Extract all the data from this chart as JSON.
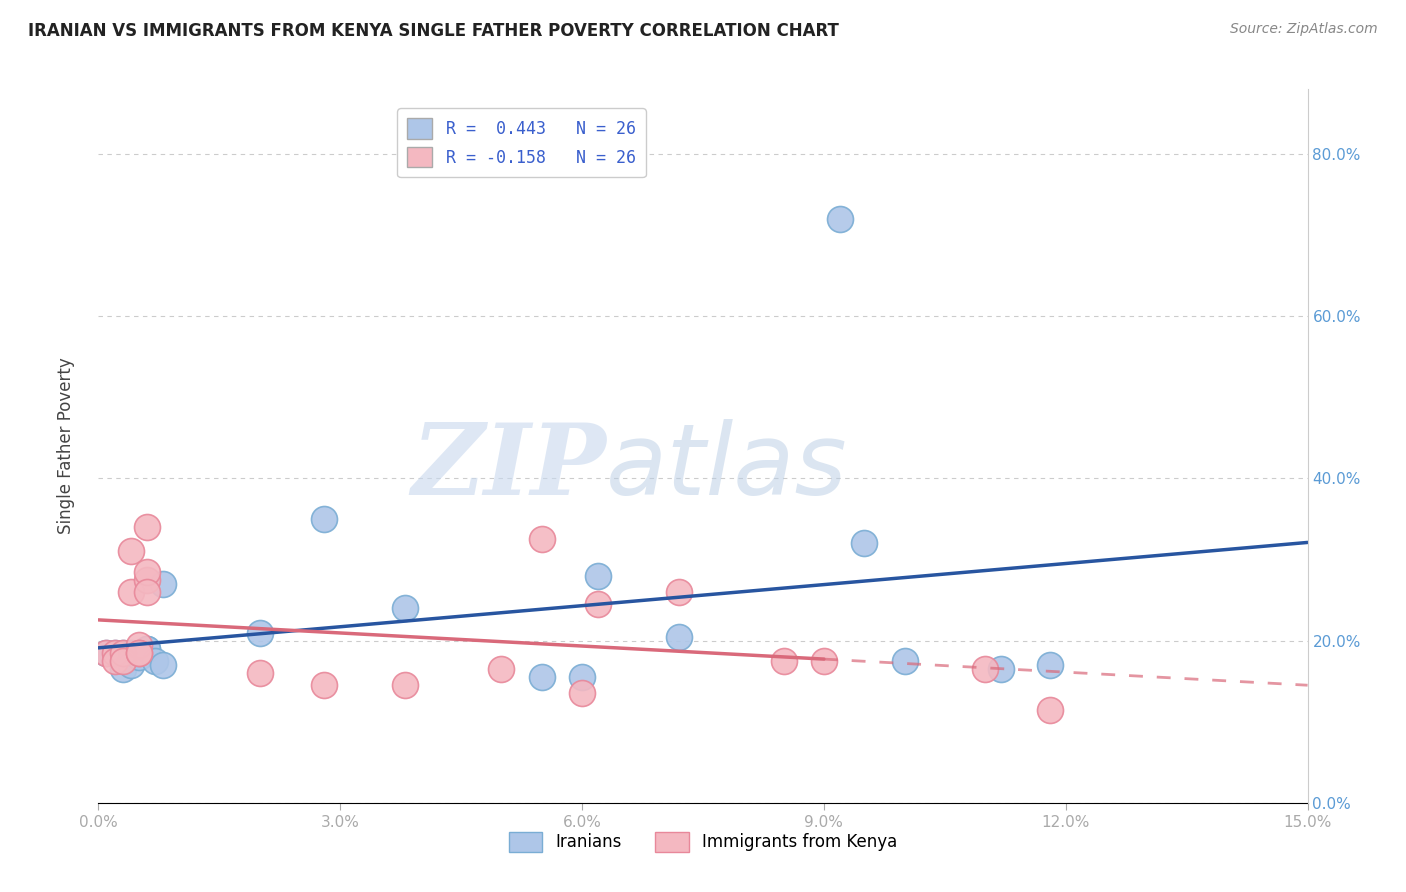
{
  "title": "IRANIAN VS IMMIGRANTS FROM KENYA SINGLE FATHER POVERTY CORRELATION CHART",
  "source": "Source: ZipAtlas.com",
  "xlabel_ticks": [
    "0.0%",
    "3.0%",
    "6.0%",
    "9.0%",
    "12.0%",
    "15.0%"
  ],
  "ylabel_label": "Single Father Poverty",
  "ylabel_ticks": [
    "0.0%",
    "20.0%",
    "40.0%",
    "60.0%",
    "80.0%"
  ],
  "xlim": [
    0.0,
    0.15
  ],
  "ylim": [
    0.0,
    0.88
  ],
  "y_tick_vals": [
    0.0,
    0.2,
    0.4,
    0.6,
    0.8
  ],
  "x_tick_vals": [
    0.0,
    0.03,
    0.06,
    0.09,
    0.12,
    0.15
  ],
  "iranians_x": [
    0.001,
    0.002,
    0.003,
    0.003,
    0.004,
    0.004,
    0.005,
    0.005,
    0.005,
    0.006,
    0.006,
    0.007,
    0.008,
    0.008,
    0.02,
    0.028,
    0.038,
    0.055,
    0.06,
    0.062,
    0.072,
    0.092,
    0.095,
    0.1,
    0.112,
    0.118
  ],
  "iranians_y": [
    0.185,
    0.185,
    0.185,
    0.165,
    0.185,
    0.17,
    0.185,
    0.185,
    0.18,
    0.19,
    0.19,
    0.175,
    0.17,
    0.27,
    0.21,
    0.35,
    0.24,
    0.155,
    0.155,
    0.28,
    0.205,
    0.72,
    0.32,
    0.175,
    0.165,
    0.17
  ],
  "kenya_x": [
    0.001,
    0.002,
    0.002,
    0.003,
    0.003,
    0.004,
    0.004,
    0.005,
    0.005,
    0.005,
    0.006,
    0.006,
    0.006,
    0.006,
    0.02,
    0.028,
    0.038,
    0.05,
    0.055,
    0.06,
    0.062,
    0.072,
    0.085,
    0.09,
    0.11,
    0.118
  ],
  "kenya_y": [
    0.185,
    0.185,
    0.175,
    0.185,
    0.175,
    0.31,
    0.26,
    0.195,
    0.185,
    0.185,
    0.275,
    0.285,
    0.34,
    0.26,
    0.16,
    0.145,
    0.145,
    0.165,
    0.325,
    0.135,
    0.245,
    0.26,
    0.175,
    0.175,
    0.165,
    0.115
  ],
  "iranian_line_color": "#2855a0",
  "kenya_line_color": "#d9697a",
  "watermark_zip": "ZIP",
  "watermark_atlas": "atlas",
  "background_color": "#ffffff",
  "grid_color": "#cccccc",
  "scatter_iranians_facecolor": "#aec6e8",
  "scatter_iranians_edgecolor": "#7aadd4",
  "scatter_kenya_facecolor": "#f4b8c1",
  "scatter_kenya_edgecolor": "#e8889a",
  "legend_line1": "R =  0.443   N = 26",
  "legend_line2": "R = -0.158   N = 26",
  "legend_color1": "#aec6e8",
  "legend_color2": "#f4b8c1",
  "legend_text_color": "#3a5fcd",
  "bottom_legend1": "Iranians",
  "bottom_legend2": "Immigrants from Kenya"
}
